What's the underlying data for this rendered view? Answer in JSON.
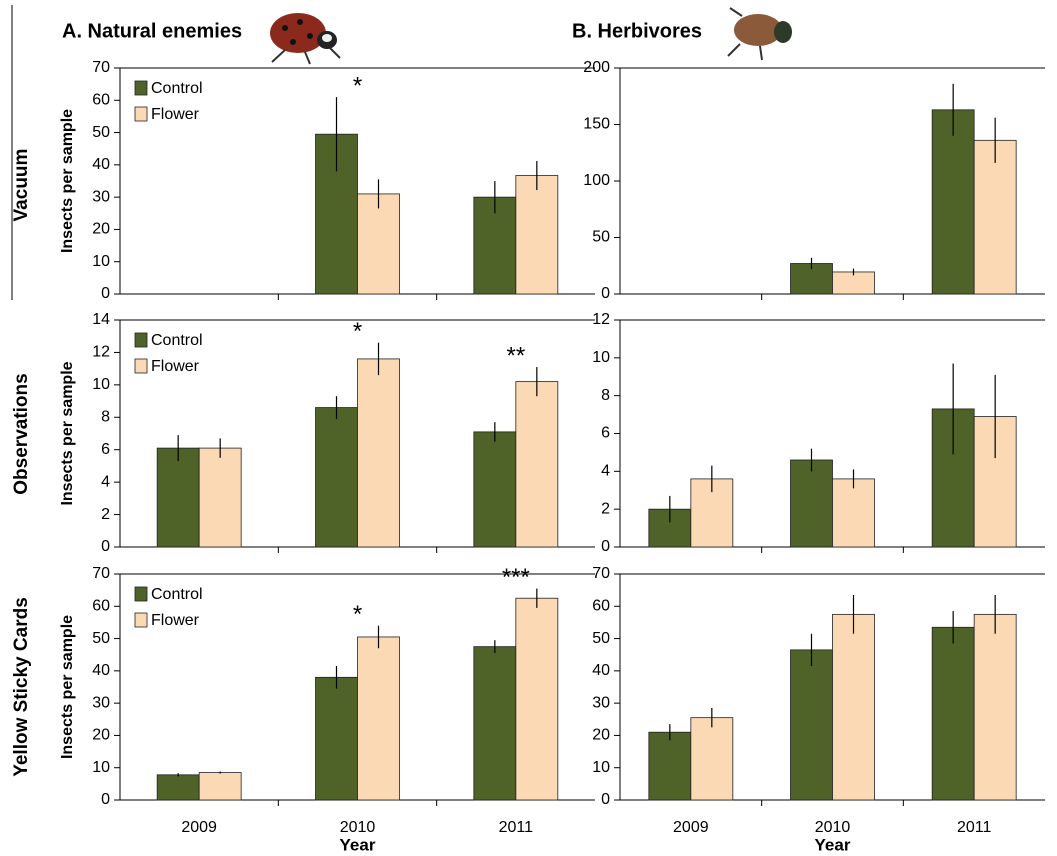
{
  "column_titles": [
    "A. Natural enemies",
    "B. Herbivores"
  ],
  "row_titles": [
    "Vacuum",
    "Observations",
    "Yellow Sticky Cards"
  ],
  "chart_data": [
    {
      "type": "bar",
      "categories": [
        null,
        null,
        null
      ],
      "ylabel": "Insects per sample",
      "series": [
        {
          "name": "Control",
          "color": "#4f6228",
          "values": [
            null,
            49.5,
            30
          ],
          "errors": [
            null,
            11.5,
            5
          ]
        },
        {
          "name": "Flower",
          "color": "#fad9b4",
          "values": [
            null,
            31,
            36.7
          ],
          "errors": [
            null,
            4.5,
            4.5
          ]
        }
      ],
      "annotations": [
        null,
        "*",
        null
      ],
      "ylim": [
        0,
        70
      ],
      "yticks": [
        0,
        10,
        20,
        30,
        40,
        50,
        60,
        70
      ],
      "legend": "upper left"
    },
    {
      "type": "bar",
      "categories": [
        null,
        null,
        null
      ],
      "series": [
        {
          "color": "#4f6228",
          "values": [
            null,
            27,
            163
          ],
          "errors": [
            null,
            5,
            23
          ]
        },
        {
          "color": "#fad9b4",
          "values": [
            null,
            19.5,
            136
          ],
          "errors": [
            null,
            3,
            20
          ]
        }
      ],
      "ylim": [
        0,
        200
      ],
      "yticks": [
        0,
        50,
        100,
        150,
        200
      ]
    },
    {
      "type": "bar",
      "categories": [
        null,
        null,
        null
      ],
      "ylabel": "Insects per sample",
      "series": [
        {
          "name": "Control",
          "color": "#4f6228",
          "values": [
            6.1,
            8.6,
            7.1
          ],
          "errors": [
            0.8,
            0.7,
            0.6
          ]
        },
        {
          "name": "Flower",
          "color": "#fad9b4",
          "values": [
            6.1,
            11.6,
            10.2
          ],
          "errors": [
            0.6,
            1.0,
            0.9
          ]
        }
      ],
      "annotations": [
        null,
        "*",
        "**"
      ],
      "ylim": [
        0,
        14
      ],
      "yticks": [
        0,
        2,
        4,
        6,
        8,
        10,
        12,
        14
      ],
      "legend": "upper left"
    },
    {
      "type": "bar",
      "categories": [
        null,
        null,
        null
      ],
      "series": [
        {
          "color": "#4f6228",
          "values": [
            2.0,
            4.6,
            7.3
          ],
          "errors": [
            0.7,
            0.6,
            2.4
          ]
        },
        {
          "color": "#fad9b4",
          "values": [
            3.6,
            3.6,
            6.9
          ],
          "errors": [
            0.7,
            0.5,
            2.2
          ]
        }
      ],
      "ylim": [
        0,
        12
      ],
      "yticks": [
        0,
        2,
        4,
        6,
        8,
        10,
        12
      ]
    },
    {
      "type": "bar",
      "categories": [
        "2009",
        "2010",
        "2011"
      ],
      "xlabel": "Year",
      "ylabel": "Insects per sample",
      "series": [
        {
          "name": "Control",
          "color": "#4f6228",
          "values": [
            7.8,
            38,
            47.5
          ],
          "errors": [
            0.5,
            3.5,
            2
          ]
        },
        {
          "name": "Flower",
          "color": "#fad9b4",
          "values": [
            8.5,
            50.5,
            62.5
          ],
          "errors": [
            0.3,
            3.5,
            3
          ]
        }
      ],
      "annotations": [
        null,
        "*",
        "***"
      ],
      "ylim": [
        0,
        70
      ],
      "yticks": [
        0,
        10,
        20,
        30,
        40,
        50,
        60,
        70
      ],
      "legend": "upper left"
    },
    {
      "type": "bar",
      "categories": [
        "2009",
        "2010",
        "2011"
      ],
      "xlabel": "Year",
      "series": [
        {
          "color": "#4f6228",
          "values": [
            21,
            46.5,
            53.5
          ],
          "errors": [
            2.5,
            5,
            5
          ]
        },
        {
          "color": "#fad9b4",
          "values": [
            25.5,
            57.5,
            57.5
          ],
          "errors": [
            3,
            6,
            6
          ]
        }
      ],
      "ylim": [
        0,
        70
      ],
      "yticks": [
        0,
        10,
        20,
        30,
        40,
        50,
        60,
        70
      ]
    }
  ]
}
